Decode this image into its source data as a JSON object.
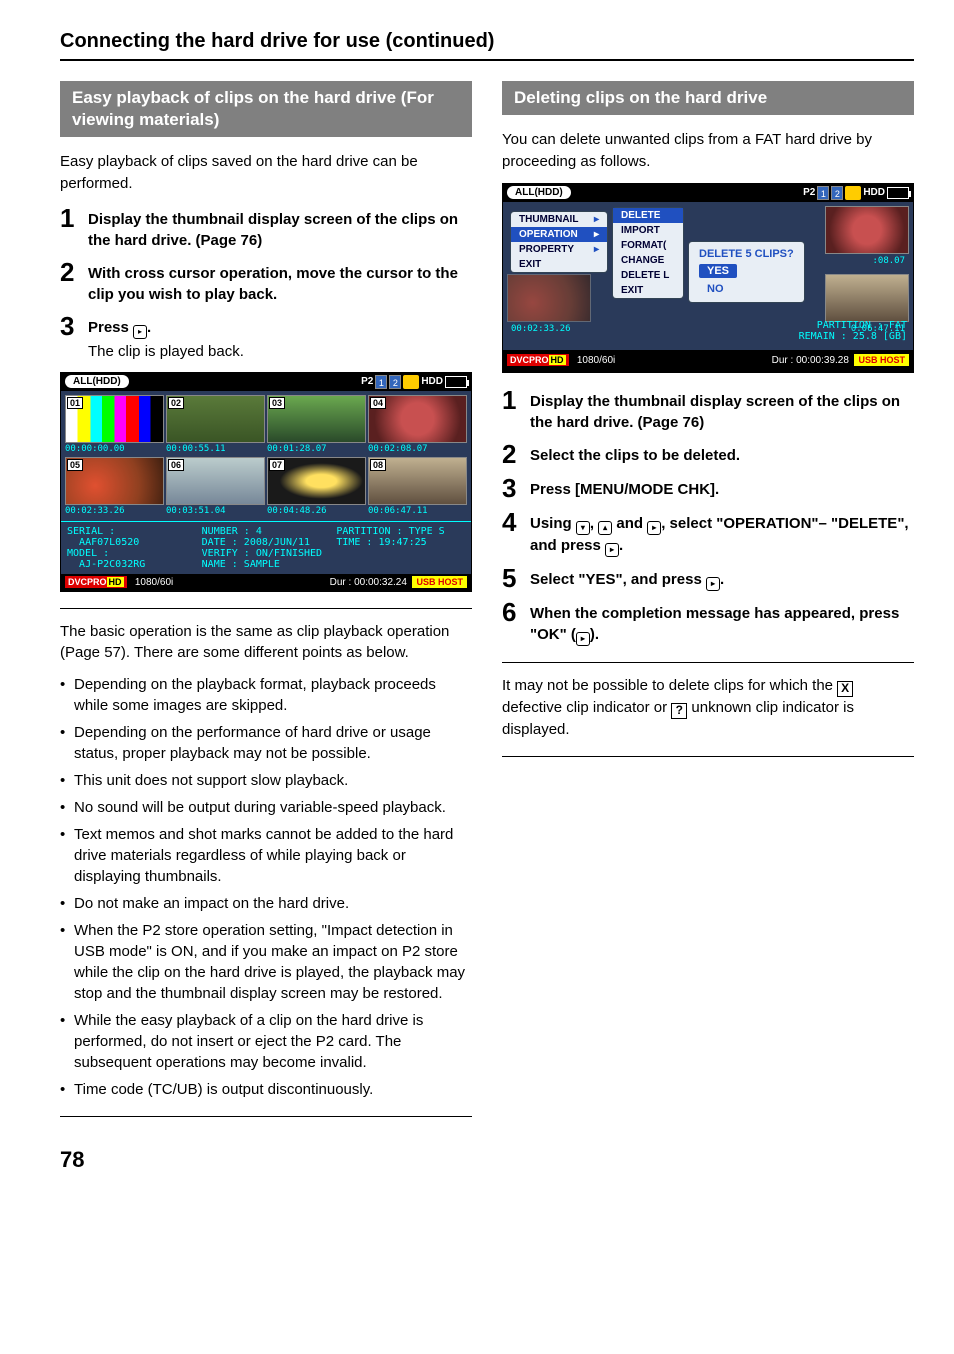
{
  "page": {
    "title": "Connecting the hard drive for use (continued)",
    "number": "78"
  },
  "left": {
    "header": "Easy playback of clips on the hard drive (For viewing materials)",
    "intro": "Easy playback of clips saved on the hard drive can be performed.",
    "steps": [
      {
        "n": "1",
        "bold": "Display the thumbnail display screen of the clips on the hard drive. (Page 76)"
      },
      {
        "n": "2",
        "bold": "With cross cursor operation, move the cursor to the clip you wish to play back."
      },
      {
        "n": "3",
        "bold": "Press ",
        "note": "The clip is played back."
      }
    ],
    "ss": {
      "top_label": "ALL(HDD)",
      "slots": [
        "P2",
        "1",
        "2"
      ],
      "hdd_label": "HDD",
      "thumbs": [
        {
          "num": "01",
          "tc": "00:00:00.00",
          "bg": "linear-gradient(90deg,#fff 0 12%,#ff0 12% 25%,#0ff 25% 37%,#0f0 37% 50%,#f0f 50% 62%,#f00 62% 75%,#00f 75% 87%,#000 87% 100%)"
        },
        {
          "num": "02",
          "tc": "00:00:55.11",
          "bg": "linear-gradient(#5a7a3a,#3a5525)"
        },
        {
          "num": "03",
          "tc": "00:01:28.07",
          "bg": "linear-gradient(#6aa84f,#2a4a2a)"
        },
        {
          "num": "04",
          "tc": "00:02:08.07",
          "bg": "radial-gradient(circle,#c85050 30%,#5a2020 80%)"
        },
        {
          "num": "05",
          "tc": "00:02:33.26",
          "bg": "radial-gradient(circle at 30% 60%,#e05030,#904020 60%,#402010)"
        },
        {
          "num": "06",
          "tc": "00:03:51.04",
          "bg": "linear-gradient(#bcc,#789)"
        },
        {
          "num": "07",
          "tc": "00:04:48.26",
          "bg": "radial-gradient(ellipse at 55% 50%,#ffe060 20%,#1a1a1a 55%)"
        },
        {
          "num": "08",
          "tc": "00:06:47.11",
          "bg": "linear-gradient(#c0b090,#605040)"
        }
      ],
      "info": {
        "serial_l": "SERIAL :",
        "serial_v": "AAF07L0520",
        "model_l": "MODEL :",
        "model_v": "AJ-P2C032RG",
        "number": "NUMBER : 4",
        "date": "DATE : 2008/JUN/11",
        "verify": "VERIFY : ON/FINISHED",
        "name": "NAME : SAMPLE",
        "partition": "PARTITION : TYPE S",
        "time": "TIME : 19:47:25"
      },
      "bottom": {
        "dvcpro": "DVCPRO",
        "hd": "HD",
        "mode": "1080/60i",
        "dur": "Dur : 00:00:32.24",
        "usb": "USB HOST"
      }
    },
    "after": "The basic operation is the same as clip playback operation (Page 57). There are some different points as below.",
    "bullets": [
      "Depending on the playback format, playback proceeds while some images are skipped.",
      "Depending on the performance of hard drive or usage status, proper playback may not be possible.",
      "This unit does not support slow playback.",
      "No sound will be output during variable-speed playback.",
      "Text memos and shot marks cannot be added to the hard drive materials regardless of while playing back or displaying thumbnails.",
      "Do not make an impact on the hard drive.",
      "When the P2 store operation setting, \"Impact detection in USB mode\" is ON, and if you make an impact on P2 store while the clip on the hard drive is played, the playback may stop and the thumbnail display screen may be restored.",
      "While the easy playback of a clip on the hard drive is performed, do not insert or eject the P2 card. The subsequent operations may become invalid.",
      "Time code (TC/UB) is output discontinuously."
    ]
  },
  "right": {
    "header": "Deleting clips on the hard drive",
    "intro": "You can delete unwanted clips from a FAT hard drive by proceeding as follows.",
    "ss": {
      "top_label": "ALL(HDD)",
      "menu1": [
        "THUMBNAIL",
        "OPERATION",
        "PROPERTY",
        "EXIT"
      ],
      "menu1_sel": 1,
      "menu2": [
        "DELETE",
        "IMPORT",
        "FORMAT(",
        "CHANGE ",
        "DELETE L",
        "EXIT"
      ],
      "menu2_sel": 0,
      "dialog_title": "DELETE 5 CLIPS?",
      "dialog_yes": "YES",
      "dialog_no": "NO",
      "partial_tc_left": "00:02:33.26",
      "partial_tc_right_top": ":08.07",
      "partial_tc_right_bottom": "0:06:47.11",
      "partition": "PARTITION : FAT",
      "remain": "REMAIN :  25.8 [GB]",
      "bottom": {
        "dvcpro": "DVCPRO",
        "hd": "HD",
        "mode": "1080/60i",
        "dur": "Dur : 00:00:39.28",
        "usb": "USB HOST"
      }
    },
    "steps": [
      {
        "n": "1",
        "bold": "Display the thumbnail display screen of the clips on the hard drive. (Page 76)"
      },
      {
        "n": "2",
        "bold": "Select the clips to be deleted."
      },
      {
        "n": "3",
        "bold": "Press [MENU/MODE CHK]."
      },
      {
        "n": "4",
        "bold_a": "Using ",
        "bold_b": ", ",
        "bold_c": " and ",
        "bold_d": ", select \"OPERATION\"– \"DELETE\", and press ",
        "bold_e": "."
      },
      {
        "n": "5",
        "bold_a": "Select \"YES\", and press ",
        "bold_b": "."
      },
      {
        "n": "6",
        "bold_a": "When the completion message has appeared, press \"OK\" (",
        "bold_b": ")."
      }
    ],
    "closing_a": "It may not be possible to delete clips for which the ",
    "closing_b": " defective clip indicator or ",
    "closing_c": " unknown clip indicator is displayed."
  }
}
